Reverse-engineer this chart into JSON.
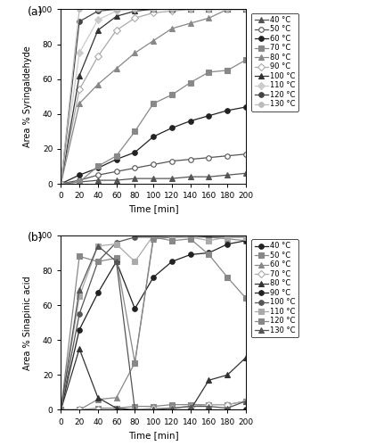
{
  "time": [
    0,
    20,
    40,
    60,
    80,
    100,
    120,
    140,
    160,
    180,
    200
  ],
  "panel_a": {
    "ylabel": "Area % Syringaldehyde",
    "xlabel": "Time [min]",
    "ylim": [
      0,
      100
    ],
    "series": {
      "40": [
        0,
        1,
        2,
        2,
        3,
        3,
        3,
        4,
        4,
        5,
        6
      ],
      "50": [
        0,
        2,
        5,
        7,
        9,
        11,
        13,
        14,
        15,
        16,
        17
      ],
      "60": [
        0,
        5,
        9,
        14,
        18,
        27,
        32,
        36,
        39,
        42,
        44
      ],
      "70": [
        0,
        1,
        10,
        16,
        30,
        46,
        51,
        58,
        64,
        65,
        71
      ],
      "80": [
        0,
        46,
        57,
        66,
        75,
        82,
        89,
        92,
        95,
        100,
        100
      ],
      "90": [
        0,
        54,
        73,
        88,
        95,
        98,
        99,
        100,
        100,
        100,
        100
      ],
      "100": [
        0,
        62,
        88,
        96,
        99,
        100,
        100,
        100,
        100,
        100,
        100
      ],
      "110": [
        0,
        75,
        94,
        99,
        100,
        100,
        100,
        100,
        100,
        100,
        100
      ],
      "120": [
        0,
        93,
        99,
        100,
        100,
        100,
        100,
        100,
        100,
        100,
        100
      ],
      "130": [
        0,
        100,
        100,
        100,
        100,
        100,
        100,
        100,
        100,
        100,
        100
      ]
    }
  },
  "panel_b": {
    "ylabel": "Area % Sinapinic acid",
    "xlabel": "Time [min]",
    "ylim": [
      0,
      100
    ],
    "series": {
      "40": [
        0,
        0,
        0,
        0,
        0,
        0,
        0,
        0,
        0,
        0,
        0
      ],
      "50": [
        0,
        0,
        1,
        1,
        2,
        2,
        3,
        3,
        3,
        3,
        5
      ],
      "60": [
        0,
        0,
        6,
        7,
        27,
        98,
        99,
        99,
        99,
        98,
        97
      ],
      "70": [
        0,
        0,
        0,
        0,
        0,
        1,
        1,
        2,
        3,
        3,
        5
      ],
      "80": [
        0,
        35,
        7,
        1,
        0,
        0,
        0,
        0,
        17,
        20,
        30
      ],
      "90": [
        0,
        46,
        67,
        85,
        58,
        76,
        85,
        89,
        90,
        95,
        97
      ],
      "100": [
        0,
        55,
        85,
        96,
        99,
        99,
        99,
        100,
        99,
        99,
        99
      ],
      "110": [
        0,
        65,
        94,
        95,
        85,
        100,
        99,
        99,
        97,
        99,
        99
      ],
      "120": [
        0,
        88,
        85,
        87,
        27,
        99,
        97,
        98,
        89,
        76,
        64
      ],
      "130": [
        0,
        69,
        94,
        85,
        0,
        0,
        1,
        2,
        2,
        1,
        5
      ]
    }
  },
  "series_a": [
    {
      "temp": "40",
      "color": "#555555",
      "marker": "^",
      "open": false,
      "lw": 0.8
    },
    {
      "temp": "50",
      "color": "#555555",
      "marker": "o",
      "open": true,
      "lw": 0.8
    },
    {
      "temp": "60",
      "color": "#222222",
      "marker": "o",
      "open": false,
      "lw": 0.8
    },
    {
      "temp": "70",
      "color": "#888888",
      "marker": "s",
      "open": false,
      "lw": 0.8
    },
    {
      "temp": "80",
      "color": "#888888",
      "marker": "^",
      "open": false,
      "lw": 0.8
    },
    {
      "temp": "90",
      "color": "#aaaaaa",
      "marker": "D",
      "open": true,
      "lw": 0.8
    },
    {
      "temp": "100",
      "color": "#333333",
      "marker": "^",
      "open": false,
      "lw": 0.8
    },
    {
      "temp": "110",
      "color": "#cccccc",
      "marker": "D",
      "open": false,
      "lw": 0.8
    },
    {
      "temp": "120",
      "color": "#444444",
      "marker": "o",
      "open": false,
      "lw": 0.8
    },
    {
      "temp": "130",
      "color": "#bbbbbb",
      "marker": "o",
      "open": false,
      "lw": 0.8
    }
  ],
  "series_b": [
    {
      "temp": "40",
      "color": "#222222",
      "marker": "o",
      "open": false,
      "lw": 0.8
    },
    {
      "temp": "50",
      "color": "#888888",
      "marker": "s",
      "open": false,
      "lw": 0.8
    },
    {
      "temp": "60",
      "color": "#888888",
      "marker": "^",
      "open": false,
      "lw": 0.8
    },
    {
      "temp": "70",
      "color": "#aaaaaa",
      "marker": "D",
      "open": true,
      "lw": 0.8
    },
    {
      "temp": "80",
      "color": "#333333",
      "marker": "^",
      "open": false,
      "lw": 0.8
    },
    {
      "temp": "90",
      "color": "#222222",
      "marker": "o",
      "open": false,
      "lw": 0.8
    },
    {
      "temp": "100",
      "color": "#555555",
      "marker": "o",
      "open": false,
      "lw": 0.8
    },
    {
      "temp": "110",
      "color": "#aaaaaa",
      "marker": "s",
      "open": false,
      "lw": 0.8
    },
    {
      "temp": "120",
      "color": "#888888",
      "marker": "s",
      "open": false,
      "lw": 0.8
    },
    {
      "temp": "130",
      "color": "#555555",
      "marker": "^",
      "open": false,
      "lw": 0.8
    }
  ],
  "legend_a": [
    {
      "label": "40 °C",
      "color": "#555555",
      "marker": "^",
      "open": false
    },
    {
      "label": "50 °C",
      "color": "#555555",
      "marker": "o",
      "open": true
    },
    {
      "label": "60 °C",
      "color": "#222222",
      "marker": "o",
      "open": false
    },
    {
      "label": "70 °C",
      "color": "#888888",
      "marker": "s",
      "open": false
    },
    {
      "label": "80 °C",
      "color": "#888888",
      "marker": "^",
      "open": false
    },
    {
      "label": "90 °C",
      "color": "#aaaaaa",
      "marker": "D",
      "open": true
    },
    {
      "label": "100 °C",
      "color": "#333333",
      "marker": "^",
      "open": false
    },
    {
      "label": "110 °C",
      "color": "#cccccc",
      "marker": "D",
      "open": false
    },
    {
      "label": "120 °C",
      "color": "#444444",
      "marker": "o",
      "open": false
    },
    {
      "label": "130 °C",
      "color": "#bbbbbb",
      "marker": "o",
      "open": false
    }
  ],
  "legend_b": [
    {
      "label": "40 °C",
      "color": "#222222",
      "marker": "o",
      "open": false
    },
    {
      "label": "50 °C",
      "color": "#888888",
      "marker": "s",
      "open": false
    },
    {
      "label": "60 °C",
      "color": "#888888",
      "marker": "^",
      "open": false
    },
    {
      "label": "70 °C",
      "color": "#aaaaaa",
      "marker": "D",
      "open": true
    },
    {
      "label": "80 °C",
      "color": "#333333",
      "marker": "^",
      "open": false
    },
    {
      "label": "90 °C",
      "color": "#222222",
      "marker": "o",
      "open": false
    },
    {
      "label": "100 °C",
      "color": "#555555",
      "marker": "o",
      "open": false
    },
    {
      "label": "110 °C",
      "color": "#aaaaaa",
      "marker": "s",
      "open": false
    },
    {
      "label": "120 °C",
      "color": "#888888",
      "marker": "s",
      "open": false
    },
    {
      "label": "130 °C",
      "color": "#555555",
      "marker": "^",
      "open": false
    }
  ]
}
